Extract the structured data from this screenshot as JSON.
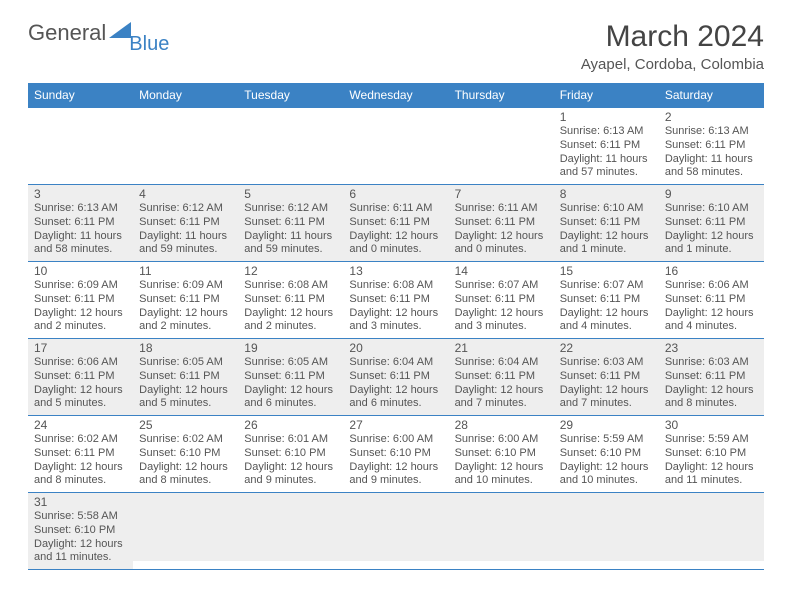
{
  "brand": {
    "text1": "General",
    "text2": "Blue"
  },
  "header": {
    "title": "March 2024",
    "subtitle": "Ayapel, Cordoba, Colombia"
  },
  "colors": {
    "accent": "#3b82c4",
    "row_alt": "#eeeeee",
    "divider": "#3b82c4"
  },
  "weekdays": [
    "Sunday",
    "Monday",
    "Tuesday",
    "Wednesday",
    "Thursday",
    "Friday",
    "Saturday"
  ],
  "grid": [
    [
      null,
      null,
      null,
      null,
      null,
      {
        "n": "1",
        "sr": "Sunrise: 6:13 AM",
        "ss": "Sunset: 6:11 PM",
        "dl1": "Daylight: 11 hours",
        "dl2": "and 57 minutes."
      },
      {
        "n": "2",
        "sr": "Sunrise: 6:13 AM",
        "ss": "Sunset: 6:11 PM",
        "dl1": "Daylight: 11 hours",
        "dl2": "and 58 minutes."
      }
    ],
    [
      {
        "n": "3",
        "sr": "Sunrise: 6:13 AM",
        "ss": "Sunset: 6:11 PM",
        "dl1": "Daylight: 11 hours",
        "dl2": "and 58 minutes."
      },
      {
        "n": "4",
        "sr": "Sunrise: 6:12 AM",
        "ss": "Sunset: 6:11 PM",
        "dl1": "Daylight: 11 hours",
        "dl2": "and 59 minutes."
      },
      {
        "n": "5",
        "sr": "Sunrise: 6:12 AM",
        "ss": "Sunset: 6:11 PM",
        "dl1": "Daylight: 11 hours",
        "dl2": "and 59 minutes."
      },
      {
        "n": "6",
        "sr": "Sunrise: 6:11 AM",
        "ss": "Sunset: 6:11 PM",
        "dl1": "Daylight: 12 hours",
        "dl2": "and 0 minutes."
      },
      {
        "n": "7",
        "sr": "Sunrise: 6:11 AM",
        "ss": "Sunset: 6:11 PM",
        "dl1": "Daylight: 12 hours",
        "dl2": "and 0 minutes."
      },
      {
        "n": "8",
        "sr": "Sunrise: 6:10 AM",
        "ss": "Sunset: 6:11 PM",
        "dl1": "Daylight: 12 hours",
        "dl2": "and 1 minute."
      },
      {
        "n": "9",
        "sr": "Sunrise: 6:10 AM",
        "ss": "Sunset: 6:11 PM",
        "dl1": "Daylight: 12 hours",
        "dl2": "and 1 minute."
      }
    ],
    [
      {
        "n": "10",
        "sr": "Sunrise: 6:09 AM",
        "ss": "Sunset: 6:11 PM",
        "dl1": "Daylight: 12 hours",
        "dl2": "and 2 minutes."
      },
      {
        "n": "11",
        "sr": "Sunrise: 6:09 AM",
        "ss": "Sunset: 6:11 PM",
        "dl1": "Daylight: 12 hours",
        "dl2": "and 2 minutes."
      },
      {
        "n": "12",
        "sr": "Sunrise: 6:08 AM",
        "ss": "Sunset: 6:11 PM",
        "dl1": "Daylight: 12 hours",
        "dl2": "and 2 minutes."
      },
      {
        "n": "13",
        "sr": "Sunrise: 6:08 AM",
        "ss": "Sunset: 6:11 PM",
        "dl1": "Daylight: 12 hours",
        "dl2": "and 3 minutes."
      },
      {
        "n": "14",
        "sr": "Sunrise: 6:07 AM",
        "ss": "Sunset: 6:11 PM",
        "dl1": "Daylight: 12 hours",
        "dl2": "and 3 minutes."
      },
      {
        "n": "15",
        "sr": "Sunrise: 6:07 AM",
        "ss": "Sunset: 6:11 PM",
        "dl1": "Daylight: 12 hours",
        "dl2": "and 4 minutes."
      },
      {
        "n": "16",
        "sr": "Sunrise: 6:06 AM",
        "ss": "Sunset: 6:11 PM",
        "dl1": "Daylight: 12 hours",
        "dl2": "and 4 minutes."
      }
    ],
    [
      {
        "n": "17",
        "sr": "Sunrise: 6:06 AM",
        "ss": "Sunset: 6:11 PM",
        "dl1": "Daylight: 12 hours",
        "dl2": "and 5 minutes."
      },
      {
        "n": "18",
        "sr": "Sunrise: 6:05 AM",
        "ss": "Sunset: 6:11 PM",
        "dl1": "Daylight: 12 hours",
        "dl2": "and 5 minutes."
      },
      {
        "n": "19",
        "sr": "Sunrise: 6:05 AM",
        "ss": "Sunset: 6:11 PM",
        "dl1": "Daylight: 12 hours",
        "dl2": "and 6 minutes."
      },
      {
        "n": "20",
        "sr": "Sunrise: 6:04 AM",
        "ss": "Sunset: 6:11 PM",
        "dl1": "Daylight: 12 hours",
        "dl2": "and 6 minutes."
      },
      {
        "n": "21",
        "sr": "Sunrise: 6:04 AM",
        "ss": "Sunset: 6:11 PM",
        "dl1": "Daylight: 12 hours",
        "dl2": "and 7 minutes."
      },
      {
        "n": "22",
        "sr": "Sunrise: 6:03 AM",
        "ss": "Sunset: 6:11 PM",
        "dl1": "Daylight: 12 hours",
        "dl2": "and 7 minutes."
      },
      {
        "n": "23",
        "sr": "Sunrise: 6:03 AM",
        "ss": "Sunset: 6:11 PM",
        "dl1": "Daylight: 12 hours",
        "dl2": "and 8 minutes."
      }
    ],
    [
      {
        "n": "24",
        "sr": "Sunrise: 6:02 AM",
        "ss": "Sunset: 6:11 PM",
        "dl1": "Daylight: 12 hours",
        "dl2": "and 8 minutes."
      },
      {
        "n": "25",
        "sr": "Sunrise: 6:02 AM",
        "ss": "Sunset: 6:10 PM",
        "dl1": "Daylight: 12 hours",
        "dl2": "and 8 minutes."
      },
      {
        "n": "26",
        "sr": "Sunrise: 6:01 AM",
        "ss": "Sunset: 6:10 PM",
        "dl1": "Daylight: 12 hours",
        "dl2": "and 9 minutes."
      },
      {
        "n": "27",
        "sr": "Sunrise: 6:00 AM",
        "ss": "Sunset: 6:10 PM",
        "dl1": "Daylight: 12 hours",
        "dl2": "and 9 minutes."
      },
      {
        "n": "28",
        "sr": "Sunrise: 6:00 AM",
        "ss": "Sunset: 6:10 PM",
        "dl1": "Daylight: 12 hours",
        "dl2": "and 10 minutes."
      },
      {
        "n": "29",
        "sr": "Sunrise: 5:59 AM",
        "ss": "Sunset: 6:10 PM",
        "dl1": "Daylight: 12 hours",
        "dl2": "and 10 minutes."
      },
      {
        "n": "30",
        "sr": "Sunrise: 5:59 AM",
        "ss": "Sunset: 6:10 PM",
        "dl1": "Daylight: 12 hours",
        "dl2": "and 11 minutes."
      }
    ],
    [
      {
        "n": "31",
        "sr": "Sunrise: 5:58 AM",
        "ss": "Sunset: 6:10 PM",
        "dl1": "Daylight: 12 hours",
        "dl2": "and 11 minutes."
      },
      null,
      null,
      null,
      null,
      null,
      null
    ]
  ],
  "row_bg": [
    "#ffffff",
    "#eeeeee",
    "#ffffff",
    "#eeeeee",
    "#ffffff",
    "#eeeeee"
  ]
}
